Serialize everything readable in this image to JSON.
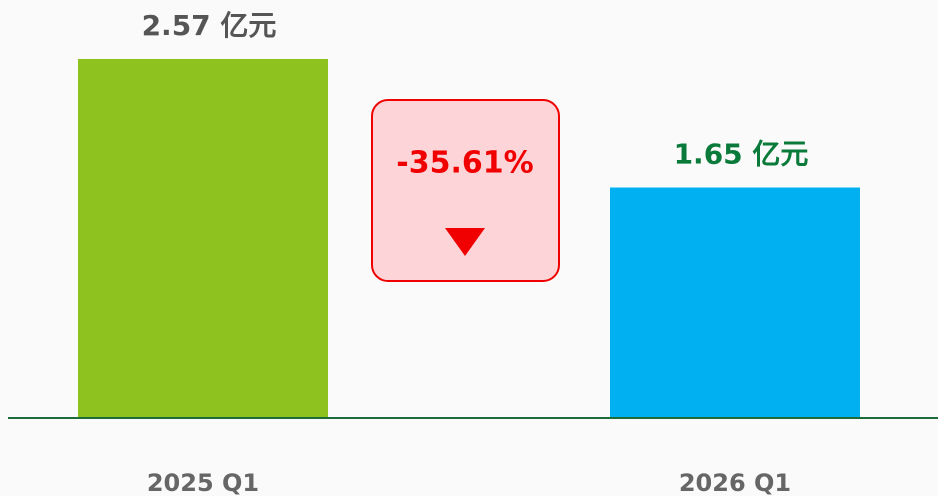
{
  "chart_data": {
    "type": "bar",
    "categories": [
      "2025 Q1",
      "2026 Q1"
    ],
    "values": [
      2.57,
      1.65
    ],
    "value_labels": [
      "2.57 亿元",
      "1.65 亿元"
    ],
    "colors": [
      "#8dc21f",
      "#00b0f0"
    ],
    "value_label_colors": [
      "#555555",
      "#0a7a3a"
    ],
    "annotation": "-35.61%"
  }
}
